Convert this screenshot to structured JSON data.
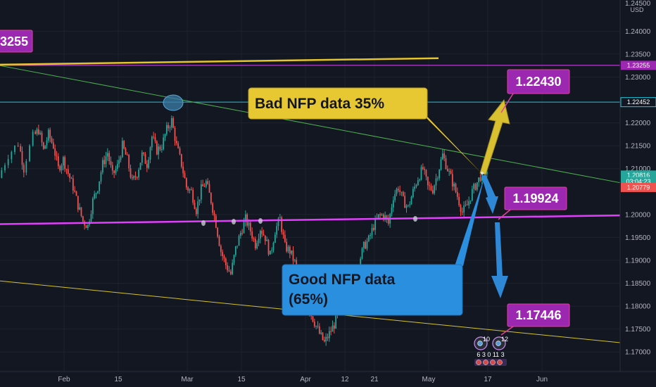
{
  "chart_data": {
    "type": "candlestick",
    "symbol_currency": "USD",
    "ylim": [
      1.1685,
      1.2465
    ],
    "xlim": [
      -4,
      125
    ],
    "y_ticks": [
      "1.24000",
      "1.23500",
      "1.23000",
      "1.22000",
      "1.21500",
      "1.21000",
      "1.20000",
      "1.19500",
      "1.19000",
      "1.18500",
      "1.18000",
      "1.17500",
      "1.17000"
    ],
    "y_top_partial": "1.24500",
    "x_ticks": [
      {
        "label": "Feb",
        "x": 9
      },
      {
        "label": "15",
        "x": 20
      },
      {
        "label": "Mar",
        "x": 34
      },
      {
        "label": "15",
        "x": 45
      },
      {
        "label": "Apr",
        "x": 58
      },
      {
        "label": "12",
        "x": 66
      },
      {
        "label": "21",
        "x": 72
      },
      {
        "label": "May",
        "x": 83
      },
      {
        "label": "17",
        "x": 95
      },
      {
        "label": "Jun",
        "x": 106
      }
    ],
    "price_path": [
      [
        -4,
        1.208
      ],
      [
        -2,
        1.213
      ],
      [
        0,
        1.2155
      ],
      [
        1,
        1.21
      ],
      [
        3,
        1.217
      ],
      [
        4,
        1.2185
      ],
      [
        5,
        1.214
      ],
      [
        6,
        1.2175
      ],
      [
        7,
        1.215
      ],
      [
        8,
        1.21
      ],
      [
        9,
        1.212
      ],
      [
        10,
        1.209
      ],
      [
        11,
        1.206
      ],
      [
        12,
        1.202
      ],
      [
        13,
        1.1985
      ],
      [
        14,
        1.1975
      ],
      [
        15,
        1.203
      ],
      [
        16,
        1.206
      ],
      [
        17,
        1.211
      ],
      [
        18,
        1.2135
      ],
      [
        19,
        1.2085
      ],
      [
        20,
        1.2105
      ],
      [
        21,
        1.215
      ],
      [
        22,
        1.212
      ],
      [
        23,
        1.207
      ],
      [
        24,
        1.209
      ],
      [
        25,
        1.213
      ],
      [
        26,
        1.211
      ],
      [
        27,
        1.217
      ],
      [
        28,
        1.214
      ],
      [
        29,
        1.215
      ],
      [
        30,
        1.2185
      ],
      [
        31,
        1.2205
      ],
      [
        32,
        1.215
      ],
      [
        33,
        1.211
      ],
      [
        34,
        1.206
      ],
      [
        35,
        1.205
      ],
      [
        36,
        1.201
      ],
      [
        37,
        1.2055
      ],
      [
        38,
        1.207
      ],
      [
        39,
        1.203
      ],
      [
        40,
        1.198
      ],
      [
        41,
        1.192
      ],
      [
        42,
        1.189
      ],
      [
        43,
        1.187
      ],
      [
        44,
        1.1925
      ],
      [
        45,
        1.196
      ],
      [
        46,
        1.199
      ],
      [
        47,
        1.1965
      ],
      [
        48,
        1.1935
      ],
      [
        49,
        1.197
      ],
      [
        50,
        1.195
      ],
      [
        51,
        1.191
      ],
      [
        52,
        1.1965
      ],
      [
        53,
        1.199
      ],
      [
        54,
        1.193
      ],
      [
        55,
        1.192
      ],
      [
        56,
        1.1895
      ],
      [
        57,
        1.186
      ],
      [
        58,
        1.183
      ],
      [
        59,
        1.179
      ],
      [
        60,
        1.1765
      ],
      [
        61,
        1.174
      ],
      [
        62,
        1.172
      ],
      [
        63,
        1.174
      ],
      [
        64,
        1.176
      ],
      [
        65,
        1.179
      ],
      [
        66,
        1.183
      ],
      [
        67,
        1.185
      ],
      [
        68,
        1.188
      ],
      [
        69,
        1.1895
      ],
      [
        70,
        1.193
      ],
      [
        71,
        1.1945
      ],
      [
        72,
        1.1975
      ],
      [
        73,
        1.1995
      ],
      [
        74,
        1.2
      ],
      [
        75,
        1.198
      ],
      [
        76,
        1.204
      ],
      [
        77,
        1.206
      ],
      [
        78,
        1.203
      ],
      [
        79,
        1.2015
      ],
      [
        80,
        1.205
      ],
      [
        81,
        1.208
      ],
      [
        82,
        1.21
      ],
      [
        83,
        1.206
      ],
      [
        84,
        1.2055
      ],
      [
        85,
        1.209
      ],
      [
        86,
        1.213
      ],
      [
        87,
        1.21
      ],
      [
        88,
        1.207
      ],
      [
        89,
        1.204
      ],
      [
        90,
        1.2005
      ],
      [
        91,
        1.202
      ],
      [
        92,
        1.205
      ],
      [
        93,
        1.207
      ],
      [
        94,
        1.209
      ],
      [
        95,
        1.2095
      ]
    ],
    "horizontal_lines": [
      {
        "name": "resistance-1.23255",
        "y": 1.23255,
        "color": "#e040fb"
      },
      {
        "name": "level-1.22452",
        "y": 1.22452,
        "color": "#26c6da"
      },
      {
        "name": "support-1.1998",
        "y": 1.1998,
        "color": "#e040fb",
        "y_left": 1.1979
      }
    ],
    "trend_lines": [
      {
        "name": "descending-resistance",
        "x1": -4,
        "y1": 1.2325,
        "x2": 124,
        "y2": 1.2065,
        "color": "#4caf50"
      },
      {
        "name": "lower-channel",
        "x1": -4,
        "y1": 1.1855,
        "x2": 124,
        "y2": 1.1718,
        "color": "#d4c22a"
      },
      {
        "name": "top-yellow",
        "x1": -4,
        "y1": 1.2327,
        "x2": 85,
        "y2": 1.2341,
        "color": "#e6c42c"
      }
    ],
    "price_labels": [
      {
        "text": "1.23255",
        "y": 1.23255,
        "bg": "#9c27b0"
      },
      {
        "text": "1.22452",
        "y": 1.22452,
        "bg": "#131722",
        "border": "#26c6da",
        "fg": "#ffffff"
      },
      {
        "text": "1.20816",
        "y": 1.2086,
        "bg": "#26a69a"
      },
      {
        "text": "03:04:23",
        "y": 1.2072,
        "bg": "#26a69a"
      },
      {
        "text": "1.20779",
        "y": 1.2059,
        "bg": "#ef5350"
      }
    ],
    "target_labels": [
      {
        "text": "1.22430",
        "x": 100,
        "y": 1.2302
      },
      {
        "text": "1.19924",
        "x": 100,
        "y": 1.2035
      },
      {
        "text": "1.17446",
        "x": 100,
        "y": 1.1777
      },
      {
        "text": "3255",
        "x": -2,
        "y": 1.2357
      }
    ],
    "notes": [
      {
        "name": "bad-nfp-note",
        "text": "Bad NFP data 35%"
      },
      {
        "name": "good-nfp-note",
        "line1": "Good NFP data",
        "line2": "(65%)"
      }
    ],
    "colors": {
      "background": "#131722",
      "up": "#26a69a",
      "down": "#ef5350",
      "note_yellow": "#e8c832",
      "note_blue": "#2b8fe0",
      "arrow_yellow": "#d8c030",
      "arrow_blue": "#2e88d6",
      "target_box": "#9c27b0",
      "target_border": "#e040a0"
    },
    "event_icons": [
      {
        "name": "event-icon-10",
        "text": "10"
      },
      {
        "name": "event-icon-12",
        "text": "12"
      }
    ],
    "event_counts": "6 3 0 11 3"
  }
}
